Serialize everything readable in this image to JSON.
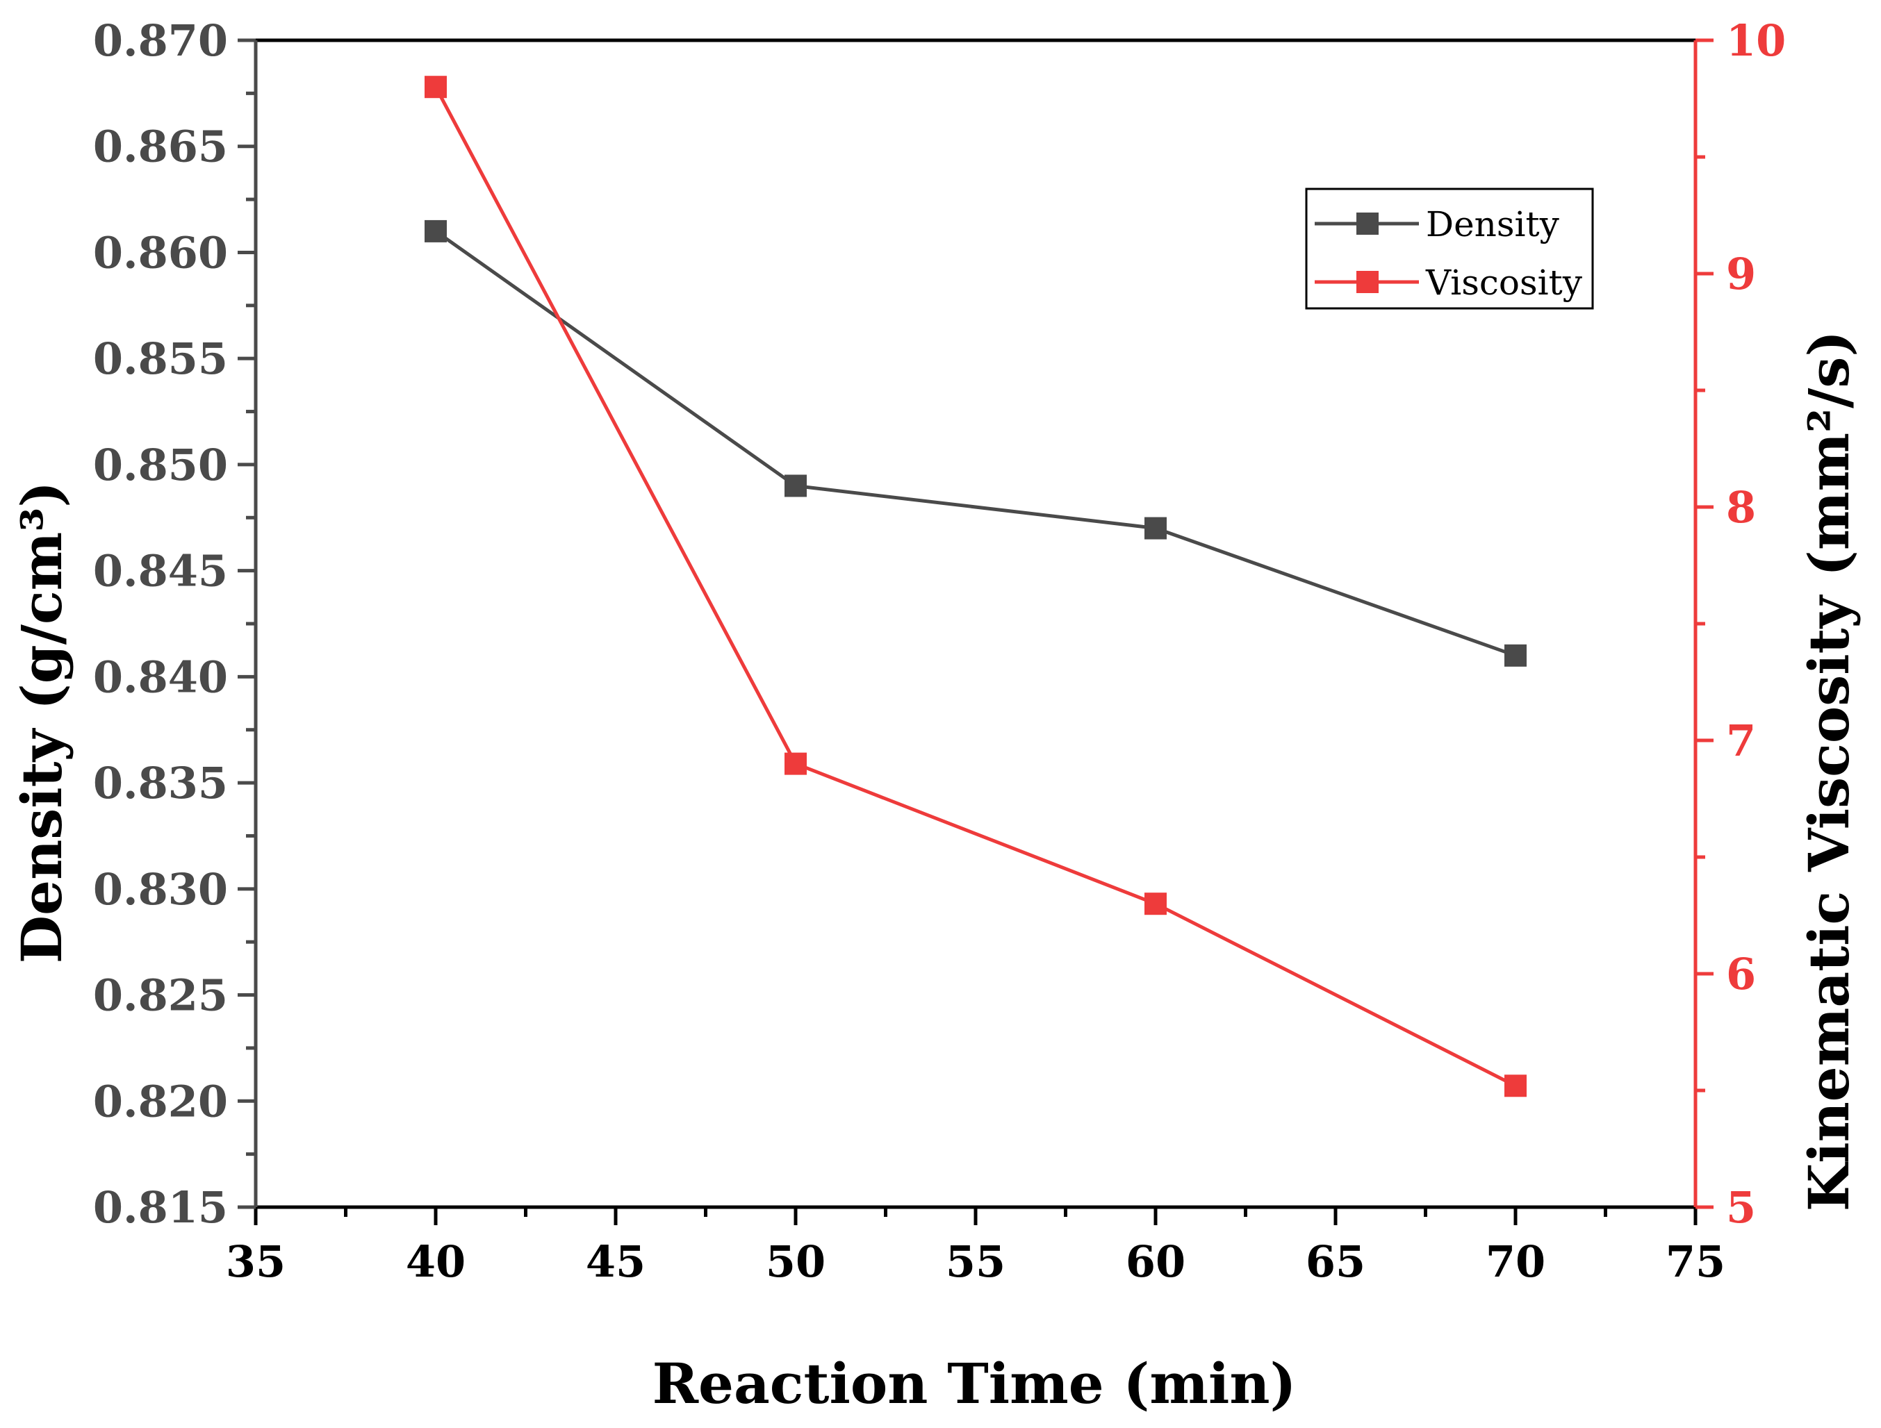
{
  "chart_data": {
    "type": "line",
    "xlabel": "Reaction Time (min)",
    "ylabel_left": "Density (g/cm³)",
    "ylabel_right": "Kinematic Viscosity (mm²/s)",
    "xlim": [
      35,
      75
    ],
    "ylim_left": [
      0.815,
      0.87
    ],
    "ylim_right": [
      5,
      10
    ],
    "x_ticks": [
      "35",
      "40",
      "45",
      "50",
      "55",
      "60",
      "65",
      "70",
      "75"
    ],
    "y_left_ticks": [
      "0.815",
      "0.820",
      "0.825",
      "0.830",
      "0.835",
      "0.840",
      "0.845",
      "0.850",
      "0.855",
      "0.860",
      "0.865",
      "0.870"
    ],
    "y_right_ticks": [
      "5",
      "6",
      "7",
      "8",
      "9",
      "10"
    ],
    "grid": false,
    "legend_position": "top-right",
    "series": [
      {
        "name": "Density",
        "axis": "left",
        "color": "#4a4a4a",
        "marker": "square",
        "x": [
          40,
          50,
          60,
          70
        ],
        "y": [
          0.861,
          0.849,
          0.847,
          0.841
        ]
      },
      {
        "name": "Viscosity",
        "axis": "right",
        "color": "#ee3b3b",
        "marker": "square",
        "x": [
          40,
          50,
          60,
          70
        ],
        "y": [
          9.8,
          6.9,
          6.3,
          5.52
        ]
      }
    ],
    "left_axis_color": "#4a4a4a",
    "right_axis_color": "#ee3b3b",
    "frame_color": "#000000"
  }
}
